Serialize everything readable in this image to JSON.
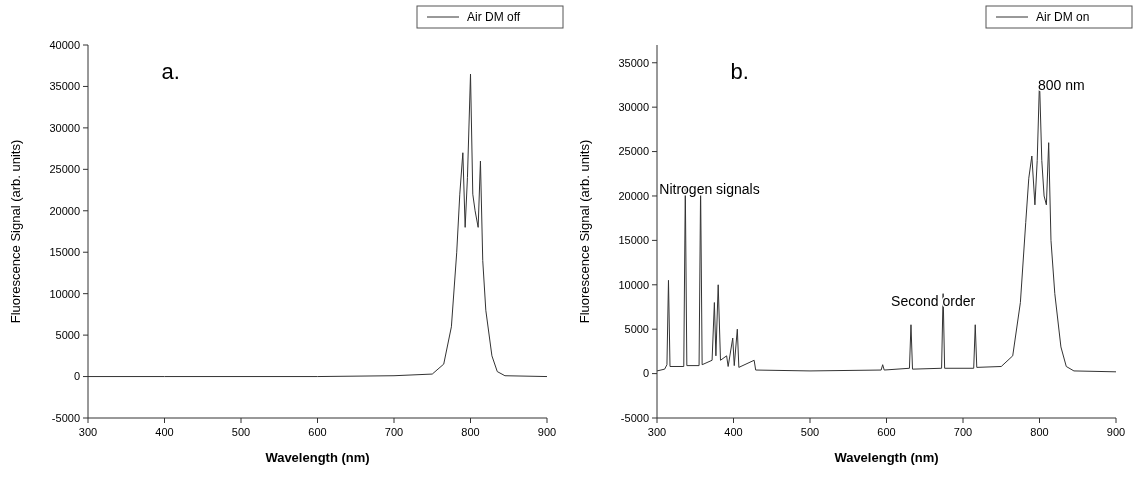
{
  "chart_data": [
    {
      "type": "line",
      "xlabel": "Wavelength (nm)",
      "ylabel": "Fluorescence Signal (arb. units)",
      "xlim": [
        300,
        900
      ],
      "xticks": [
        300,
        400,
        500,
        600,
        700,
        800,
        900
      ],
      "ylim": [
        -5000,
        40000
      ],
      "yticks": [
        -5000,
        0,
        5000,
        10000,
        15000,
        20000,
        25000,
        30000,
        35000,
        40000
      ],
      "legend": "top right",
      "grid": false,
      "annotations": [
        "a."
      ],
      "series": [
        {
          "name": "Air DM off",
          "color": "#333333",
          "x": [
            300,
            400,
            500,
            600,
            700,
            750,
            765,
            775,
            782,
            786,
            790,
            793,
            796,
            800,
            803,
            806,
            810,
            813,
            816,
            820,
            828,
            835,
            845,
            900
          ],
          "values": [
            0,
            0,
            0,
            0,
            100,
            300,
            1500,
            6000,
            15000,
            22000,
            27000,
            18000,
            24000,
            36500,
            22000,
            20000,
            18000,
            26000,
            14000,
            8000,
            2500,
            600,
            100,
            0
          ]
        }
      ]
    },
    {
      "type": "line",
      "xlabel": "Wavelength (nm)",
      "ylabel": "Fluorescence Signal (arb. units)",
      "xlim": [
        300,
        900
      ],
      "xticks": [
        300,
        400,
        500,
        600,
        700,
        800,
        900
      ],
      "ylim": [
        -5000,
        37000
      ],
      "yticks": [
        -5000,
        0,
        5000,
        10000,
        15000,
        20000,
        25000,
        30000,
        35000
      ],
      "legend": "top right",
      "grid": false,
      "annotations": [
        "b.",
        "Nitrogen signals",
        "Second order",
        "800 nm"
      ],
      "series": [
        {
          "name": "Air DM on",
          "color": "#333333",
          "x": [
            300,
            310,
            313,
            315,
            317,
            335,
            337,
            339,
            355,
            357,
            359,
            372,
            375,
            377,
            380,
            383,
            391,
            393,
            399,
            401,
            405,
            407,
            427,
            429,
            500,
            593,
            595,
            597,
            630,
            632,
            634,
            672,
            674,
            676,
            714,
            716,
            718,
            750,
            765,
            775,
            782,
            786,
            790,
            794,
            797,
            800,
            803,
            806,
            809,
            812,
            815,
            820,
            828,
            835,
            845,
            900
          ],
          "values": [
            300,
            500,
            1000,
            10500,
            800,
            800,
            21000,
            900,
            900,
            21000,
            1000,
            1500,
            8000,
            2000,
            10000,
            1500,
            2000,
            800,
            4000,
            900,
            5000,
            700,
            1500,
            400,
            300,
            400,
            1000,
            400,
            600,
            5500,
            500,
            600,
            9000,
            600,
            600,
            5500,
            700,
            800,
            2000,
            8000,
            17000,
            22000,
            24500,
            19000,
            24000,
            33000,
            24000,
            20000,
            19000,
            26000,
            15000,
            9000,
            3000,
            800,
            300,
            200
          ]
        }
      ]
    }
  ]
}
